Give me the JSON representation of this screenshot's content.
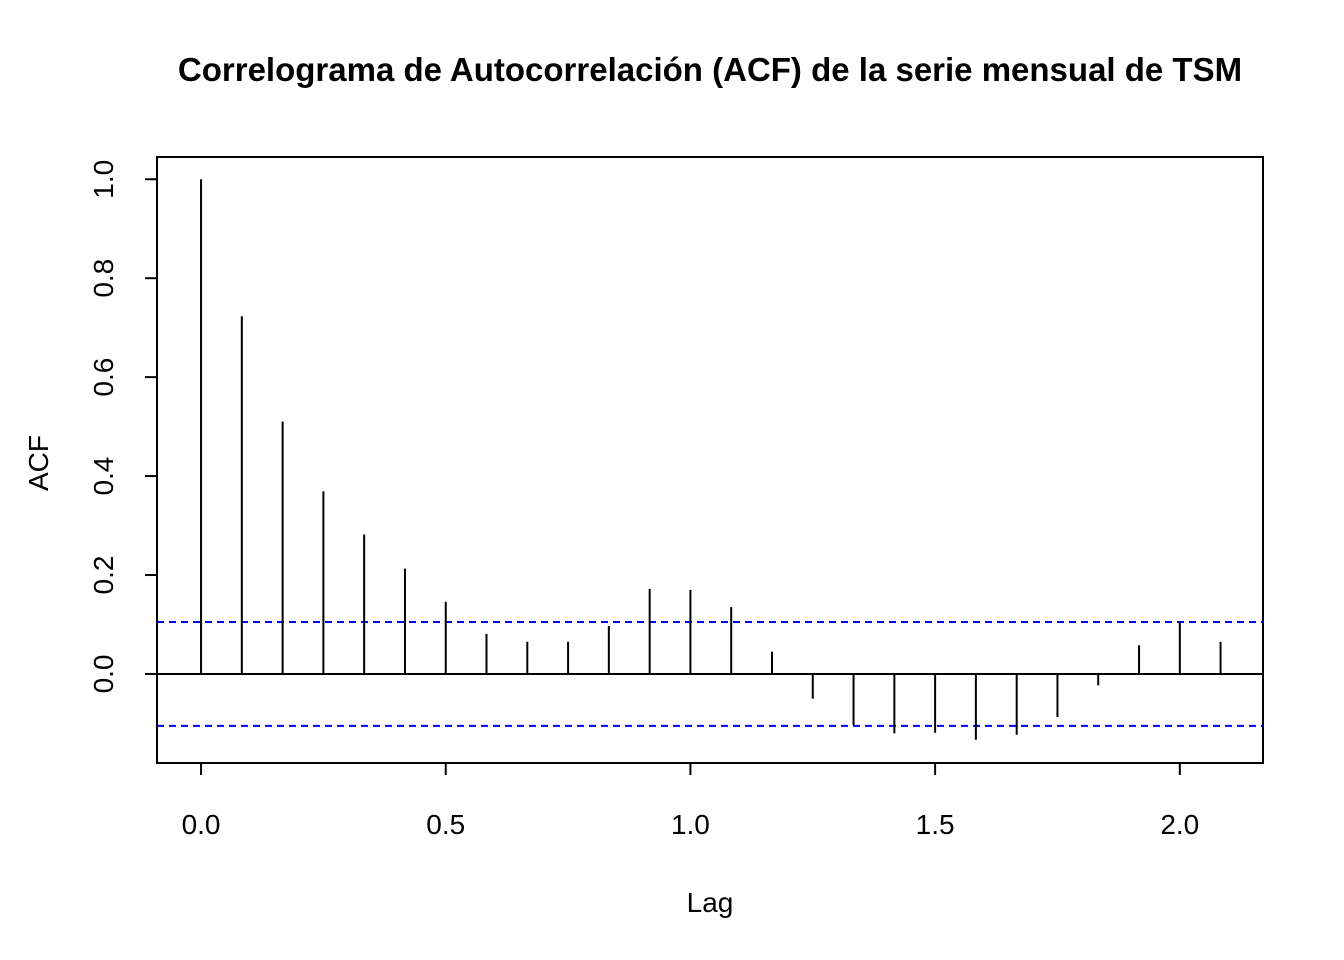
{
  "chart_data": {
    "type": "bar",
    "title": "Correlograma de Autocorrelación (ACF) de la serie mensual de TSM",
    "xlabel": "Lag",
    "ylabel": "ACF",
    "xlim": [
      -0.09,
      2.17
    ],
    "ylim": [
      -0.18,
      1.045
    ],
    "x_ticks": [
      0.0,
      0.5,
      1.0,
      1.5,
      2.0
    ],
    "x_tick_labels": [
      "0.0",
      "0.5",
      "1.0",
      "1.5",
      "2.0"
    ],
    "y_ticks": [
      0.0,
      0.2,
      0.4,
      0.6,
      0.8,
      1.0
    ],
    "y_tick_labels": [
      "0.0",
      "0.2",
      "0.4",
      "0.6",
      "0.8",
      "1.0"
    ],
    "lags": [
      0.0,
      0.0833,
      0.1667,
      0.25,
      0.3333,
      0.4167,
      0.5,
      0.5833,
      0.6667,
      0.75,
      0.8333,
      0.9167,
      1.0,
      1.0833,
      1.1667,
      1.25,
      1.3333,
      1.4167,
      1.5,
      1.5833,
      1.6667,
      1.75,
      1.8333,
      1.9167,
      2.0,
      2.0833
    ],
    "acf": [
      1.0,
      0.723,
      0.51,
      0.369,
      0.282,
      0.213,
      0.146,
      0.081,
      0.065,
      0.065,
      0.097,
      0.172,
      0.17,
      0.135,
      0.045,
      -0.05,
      -0.103,
      -0.12,
      -0.119,
      -0.133,
      -0.123,
      -0.087,
      -0.023,
      0.058,
      0.106,
      0.065
    ],
    "confidence_band": [
      0.105,
      -0.105
    ],
    "confidence_band_color": "#0000ff",
    "zero_line": true,
    "grid": false
  }
}
